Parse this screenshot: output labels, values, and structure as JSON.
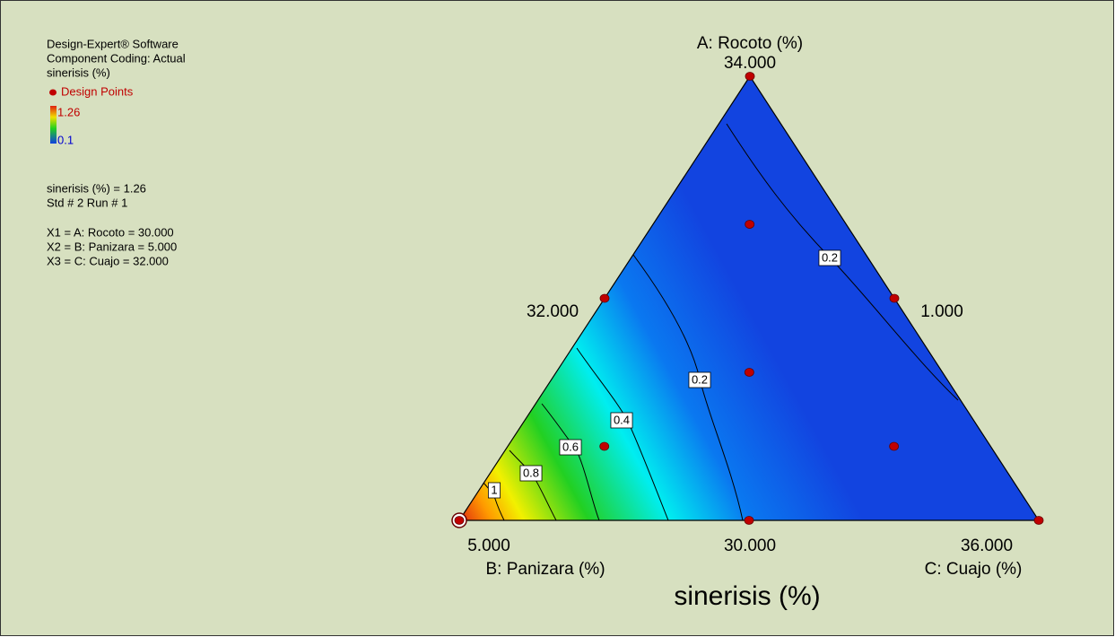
{
  "chart_data": {
    "type": "ternary",
    "title": "sinerisis (%)",
    "software": "Design-Expert® Software",
    "coding": "Component Coding: Actual",
    "legend_title": "sinerisis (%)",
    "legend_points": "Design Points",
    "colorbar": {
      "max": 1.26,
      "min": 0.1
    },
    "info": [
      "sinerisis (%) = 1.26",
      "Std # 2 Run # 1",
      "X1 = A: Rocoto = 30.000",
      "X2 = B: Panizara = 5.000",
      "X3 = C: Cuajo = 32.000"
    ],
    "axes": {
      "a": {
        "label": "A: Rocoto (%)",
        "high": "34.000",
        "low": "1.000"
      },
      "b": {
        "label": "B: Panizara (%)",
        "high": "5.000",
        "low": "32.000"
      },
      "c": {
        "label": "C: Cuajo (%)",
        "high": "36.000",
        "low": "30.000"
      }
    },
    "alim": [
      30,
      34
    ],
    "blim": [
      1,
      5
    ],
    "clim": [
      32,
      36
    ],
    "points": {
      "a": [
        34,
        30,
        30,
        32,
        32,
        30,
        31.333,
        32.667,
        30.667,
        30.667
      ],
      "b": [
        1,
        5,
        1,
        3,
        1,
        3,
        2.333,
        1.667,
        3.667,
        1.667
      ],
      "c": [
        32,
        32,
        36,
        32,
        34,
        34,
        33.333,
        32.667,
        32.667,
        34.667
      ]
    },
    "highlighted_point": 1,
    "contour_labels": [
      0.2,
      0.2,
      0.4,
      0.6,
      0.8,
      1
    ]
  }
}
